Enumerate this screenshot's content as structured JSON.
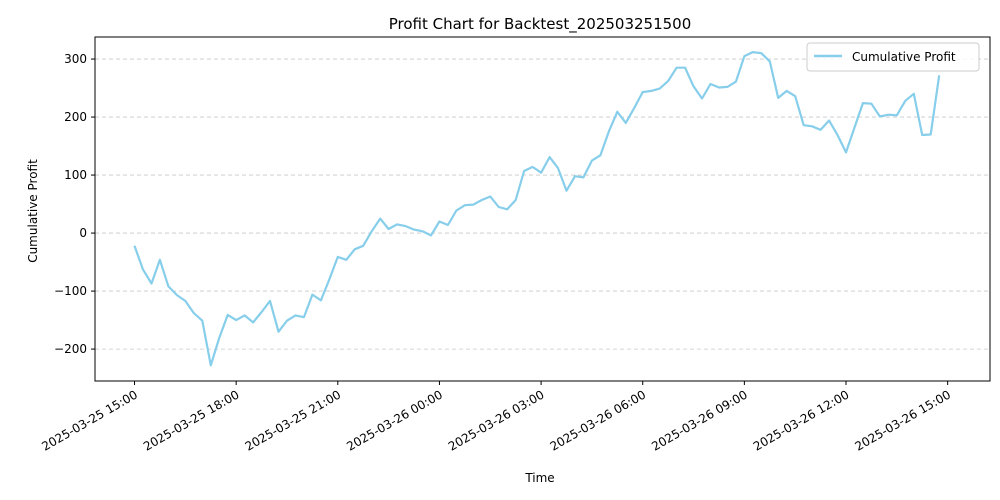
{
  "chart_data": {
    "type": "line",
    "title": "Profit Chart for Backtest_202503251500",
    "xlabel": "Time",
    "ylabel": "Cumulative Profit",
    "x_ticks": [
      "2025-03-25 15:00",
      "2025-03-25 18:00",
      "2025-03-25 21:00",
      "2025-03-26 00:00",
      "2025-03-26 03:00",
      "2025-03-26 06:00",
      "2025-03-26 09:00",
      "2025-03-26 12:00",
      "2025-03-26 15:00"
    ],
    "y_ticks": [
      -200,
      -100,
      0,
      100,
      200,
      300
    ],
    "xlim": [
      "2025-03-25 13:50",
      "2025-03-26 16:15"
    ],
    "ylim": [
      -255,
      338
    ],
    "grid": "y-dashed",
    "legend_position": "top-right",
    "series": [
      {
        "name": "Cumulative Profit",
        "color": "#87ceeb",
        "x": [
          "2025-03-25 15:00",
          "2025-03-25 15:15",
          "2025-03-25 15:30",
          "2025-03-25 15:45",
          "2025-03-25 16:00",
          "2025-03-25 16:15",
          "2025-03-25 16:30",
          "2025-03-25 16:45",
          "2025-03-25 17:00",
          "2025-03-25 17:15",
          "2025-03-25 17:30",
          "2025-03-25 17:45",
          "2025-03-25 18:00",
          "2025-03-25 18:15",
          "2025-03-25 18:30",
          "2025-03-25 18:45",
          "2025-03-25 19:00",
          "2025-03-25 19:15",
          "2025-03-25 19:30",
          "2025-03-25 19:45",
          "2025-03-25 20:00",
          "2025-03-25 20:15",
          "2025-03-25 20:30",
          "2025-03-25 20:45",
          "2025-03-25 21:00",
          "2025-03-25 21:15",
          "2025-03-25 21:30",
          "2025-03-25 21:45",
          "2025-03-25 22:00",
          "2025-03-25 22:15",
          "2025-03-25 22:30",
          "2025-03-25 22:45",
          "2025-03-25 23:00",
          "2025-03-25 23:15",
          "2025-03-25 23:30",
          "2025-03-25 23:45",
          "2025-03-26 00:00",
          "2025-03-26 00:15",
          "2025-03-26 00:30",
          "2025-03-26 00:45",
          "2025-03-26 01:00",
          "2025-03-26 01:15",
          "2025-03-26 01:30",
          "2025-03-26 01:45",
          "2025-03-26 02:00",
          "2025-03-26 02:15",
          "2025-03-26 02:30",
          "2025-03-26 02:45",
          "2025-03-26 03:00",
          "2025-03-26 03:15",
          "2025-03-26 03:30",
          "2025-03-26 03:45",
          "2025-03-26 04:00",
          "2025-03-26 04:15",
          "2025-03-26 04:30",
          "2025-03-26 04:45",
          "2025-03-26 05:00",
          "2025-03-26 05:15",
          "2025-03-26 05:30",
          "2025-03-26 05:45",
          "2025-03-26 06:00",
          "2025-03-26 06:15",
          "2025-03-26 06:30",
          "2025-03-26 06:45",
          "2025-03-26 07:00",
          "2025-03-26 07:15",
          "2025-03-26 07:30",
          "2025-03-26 07:45",
          "2025-03-26 08:00",
          "2025-03-26 08:15",
          "2025-03-26 08:30",
          "2025-03-26 08:45",
          "2025-03-26 09:00",
          "2025-03-26 09:15",
          "2025-03-26 09:30",
          "2025-03-26 09:45",
          "2025-03-26 10:00",
          "2025-03-26 10:15",
          "2025-03-26 10:30",
          "2025-03-26 10:45",
          "2025-03-26 11:00",
          "2025-03-26 11:15",
          "2025-03-26 11:30",
          "2025-03-26 11:45",
          "2025-03-26 12:00",
          "2025-03-26 12:15",
          "2025-03-26 12:30",
          "2025-03-26 12:45",
          "2025-03-26 13:00",
          "2025-03-26 13:15",
          "2025-03-26 13:30",
          "2025-03-26 13:45",
          "2025-03-26 14:00",
          "2025-03-26 14:15",
          "2025-03-26 14:30",
          "2025-03-26 14:45"
        ],
        "y": [
          -22,
          -63,
          -87,
          -46,
          -92,
          -107,
          -117,
          -138,
          -151,
          -228,
          -181,
          -141,
          -150,
          -142,
          -154,
          -136,
          -117,
          -170,
          -151,
          -142,
          -145,
          -106,
          -116,
          -80,
          -41,
          -46,
          -28,
          -22,
          3,
          25,
          7,
          15,
          12,
          6,
          3,
          -4,
          20,
          14,
          39,
          48,
          49,
          57,
          63,
          45,
          41,
          57,
          107,
          114,
          104,
          131,
          112,
          73,
          98,
          96,
          125,
          134,
          175,
          209,
          190,
          216,
          243,
          245,
          249,
          262,
          285,
          285,
          253,
          232,
          257,
          251,
          252,
          261,
          305,
          312,
          310,
          296,
          233,
          245,
          236,
          186,
          184,
          178,
          194,
          169,
          139,
          182,
          224,
          223,
          201,
          204,
          203,
          228,
          240,
          169,
          170,
          272
        ]
      }
    ]
  }
}
